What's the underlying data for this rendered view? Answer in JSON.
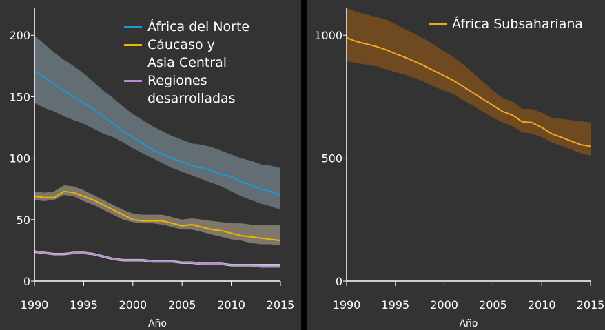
{
  "chart_data": [
    {
      "type": "line",
      "x_label": "Año",
      "x": [
        1990,
        1991,
        1992,
        1993,
        1994,
        1995,
        1996,
        1997,
        1998,
        1999,
        2000,
        2001,
        2002,
        2003,
        2004,
        2005,
        2006,
        2007,
        2008,
        2009,
        2010,
        2011,
        2012,
        2013,
        2014,
        2015
      ],
      "xlim": [
        1990,
        2015
      ],
      "xticks": [
        1990,
        1995,
        2000,
        2005,
        2010,
        2015
      ],
      "ylim": [
        0,
        222
      ],
      "yticks": [
        0,
        50,
        100,
        150,
        200
      ],
      "series": [
        {
          "name": "África del Norte",
          "color": "#1b9ad6",
          "band_color": "#6b7880",
          "values": [
            171,
            166,
            160,
            155,
            150,
            145,
            140,
            134,
            128,
            122,
            117,
            112,
            107,
            103,
            100,
            97,
            94,
            92,
            90,
            87,
            85,
            81,
            78,
            75,
            73,
            70
          ],
          "upper": [
            200,
            193,
            186,
            180,
            175,
            169,
            162,
            155,
            149,
            142,
            136,
            131,
            126,
            122,
            118,
            115,
            112,
            111,
            109,
            106,
            103,
            100,
            98,
            95,
            94,
            92
          ],
          "lower": [
            145,
            141,
            138,
            134,
            131,
            128,
            124,
            120,
            117,
            113,
            108,
            104,
            100,
            96,
            92,
            89,
            86,
            83,
            80,
            77,
            73,
            69,
            66,
            63,
            61,
            58
          ]
        },
        {
          "name": "Cáucaso y\nAsia Central",
          "color": "#f0b400",
          "band_color": "#8e8476",
          "values": [
            69,
            68,
            68,
            73,
            72,
            69,
            66,
            62,
            58,
            54,
            50,
            49,
            49,
            49,
            47,
            45,
            46,
            44,
            42,
            41,
            39,
            37,
            36,
            35,
            34,
            33
          ],
          "upper": [
            73,
            72,
            73,
            78,
            77,
            74,
            70,
            66,
            62,
            58,
            55,
            54,
            54,
            54,
            52,
            50,
            51,
            50,
            49,
            48,
            47,
            47,
            46,
            46,
            46,
            46
          ],
          "lower": [
            66,
            65,
            66,
            70,
            69,
            65,
            62,
            58,
            54,
            50,
            48,
            47,
            47,
            46,
            44,
            42,
            42,
            40,
            38,
            36,
            34,
            33,
            31,
            30,
            30,
            29
          ]
        },
        {
          "name": "Regiones\ndesarrolladas",
          "color": "#b58bd1",
          "band_color": "#e8e0ee",
          "values": [
            24,
            23,
            22,
            22,
            23,
            23,
            22,
            20,
            18,
            17,
            17,
            17,
            16,
            16,
            16,
            15,
            15,
            14,
            14,
            14,
            13,
            13,
            13,
            12,
            12,
            12
          ],
          "upper": [
            25,
            24,
            23,
            23,
            24,
            24,
            23,
            21,
            19,
            18,
            18,
            18,
            17,
            17,
            17,
            16,
            16,
            15,
            15,
            15,
            14,
            14,
            14,
            14,
            14,
            14
          ],
          "lower": [
            23,
            22,
            21,
            21,
            22,
            22,
            21,
            19,
            17,
            16,
            16,
            16,
            15,
            15,
            15,
            14,
            14,
            13,
            13,
            13,
            12,
            12,
            12,
            11,
            11,
            11
          ]
        }
      ]
    },
    {
      "type": "line",
      "x_label": "Año",
      "x": [
        1990,
        1991,
        1992,
        1993,
        1994,
        1995,
        1996,
        1997,
        1998,
        1999,
        2000,
        2001,
        2002,
        2003,
        2004,
        2005,
        2006,
        2007,
        2008,
        2009,
        2010,
        2011,
        2012,
        2013,
        2014,
        2015
      ],
      "xlim": [
        1990,
        2015
      ],
      "xticks": [
        1990,
        1995,
        2000,
        2005,
        2010,
        2015
      ],
      "ylim": [
        0,
        1110
      ],
      "yticks": [
        0,
        500,
        1000
      ],
      "series": [
        {
          "name": "África Subsahariana",
          "color": "#f5a623",
          "band_color": "#7a4f1e",
          "values": [
            990,
            975,
            965,
            955,
            942,
            925,
            910,
            893,
            875,
            855,
            835,
            815,
            790,
            765,
            740,
            715,
            690,
            675,
            648,
            645,
            625,
            600,
            585,
            570,
            555,
            548
          ],
          "upper": [
            1110,
            1095,
            1085,
            1075,
            1065,
            1045,
            1025,
            1005,
            985,
            960,
            935,
            910,
            880,
            845,
            810,
            775,
            745,
            730,
            700,
            700,
            685,
            665,
            660,
            655,
            650,
            645
          ],
          "lower": [
            895,
            888,
            880,
            875,
            862,
            850,
            840,
            825,
            810,
            790,
            775,
            760,
            735,
            712,
            688,
            665,
            645,
            630,
            605,
            600,
            585,
            565,
            550,
            535,
            520,
            510
          ]
        }
      ]
    }
  ]
}
